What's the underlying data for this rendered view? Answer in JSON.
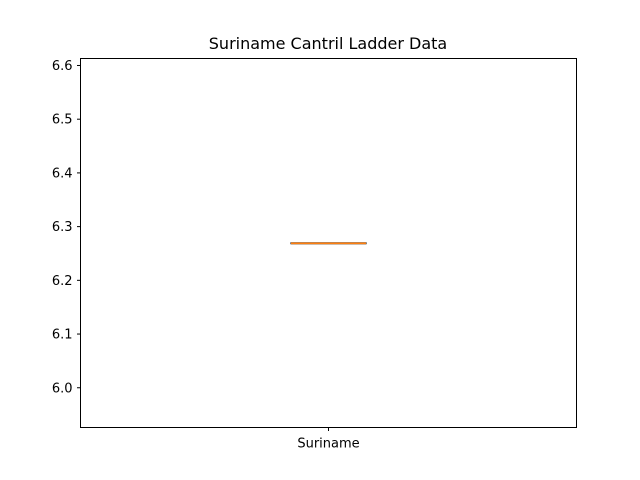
{
  "chart_data": {
    "type": "box",
    "title": "Suriname Cantril Ladder Data",
    "xlabel": "",
    "ylabel": "",
    "categories": [
      "Suriname"
    ],
    "series": [
      {
        "name": "Suriname",
        "min": 6.269,
        "q1": 6.269,
        "median": 6.269,
        "q3": 6.269,
        "max": 6.269
      }
    ],
    "ylim": [
      5.926,
      6.613
    ],
    "yticks": [
      6.0,
      6.1,
      6.2,
      6.3,
      6.4,
      6.5,
      6.6
    ],
    "ytick_labels": [
      "6.0",
      "6.1",
      "6.2",
      "6.3",
      "6.4",
      "6.5",
      "6.6"
    ],
    "grid": false,
    "colors": {
      "box": "#000000",
      "median": "#ff7f0e",
      "axes": "#000000"
    }
  }
}
